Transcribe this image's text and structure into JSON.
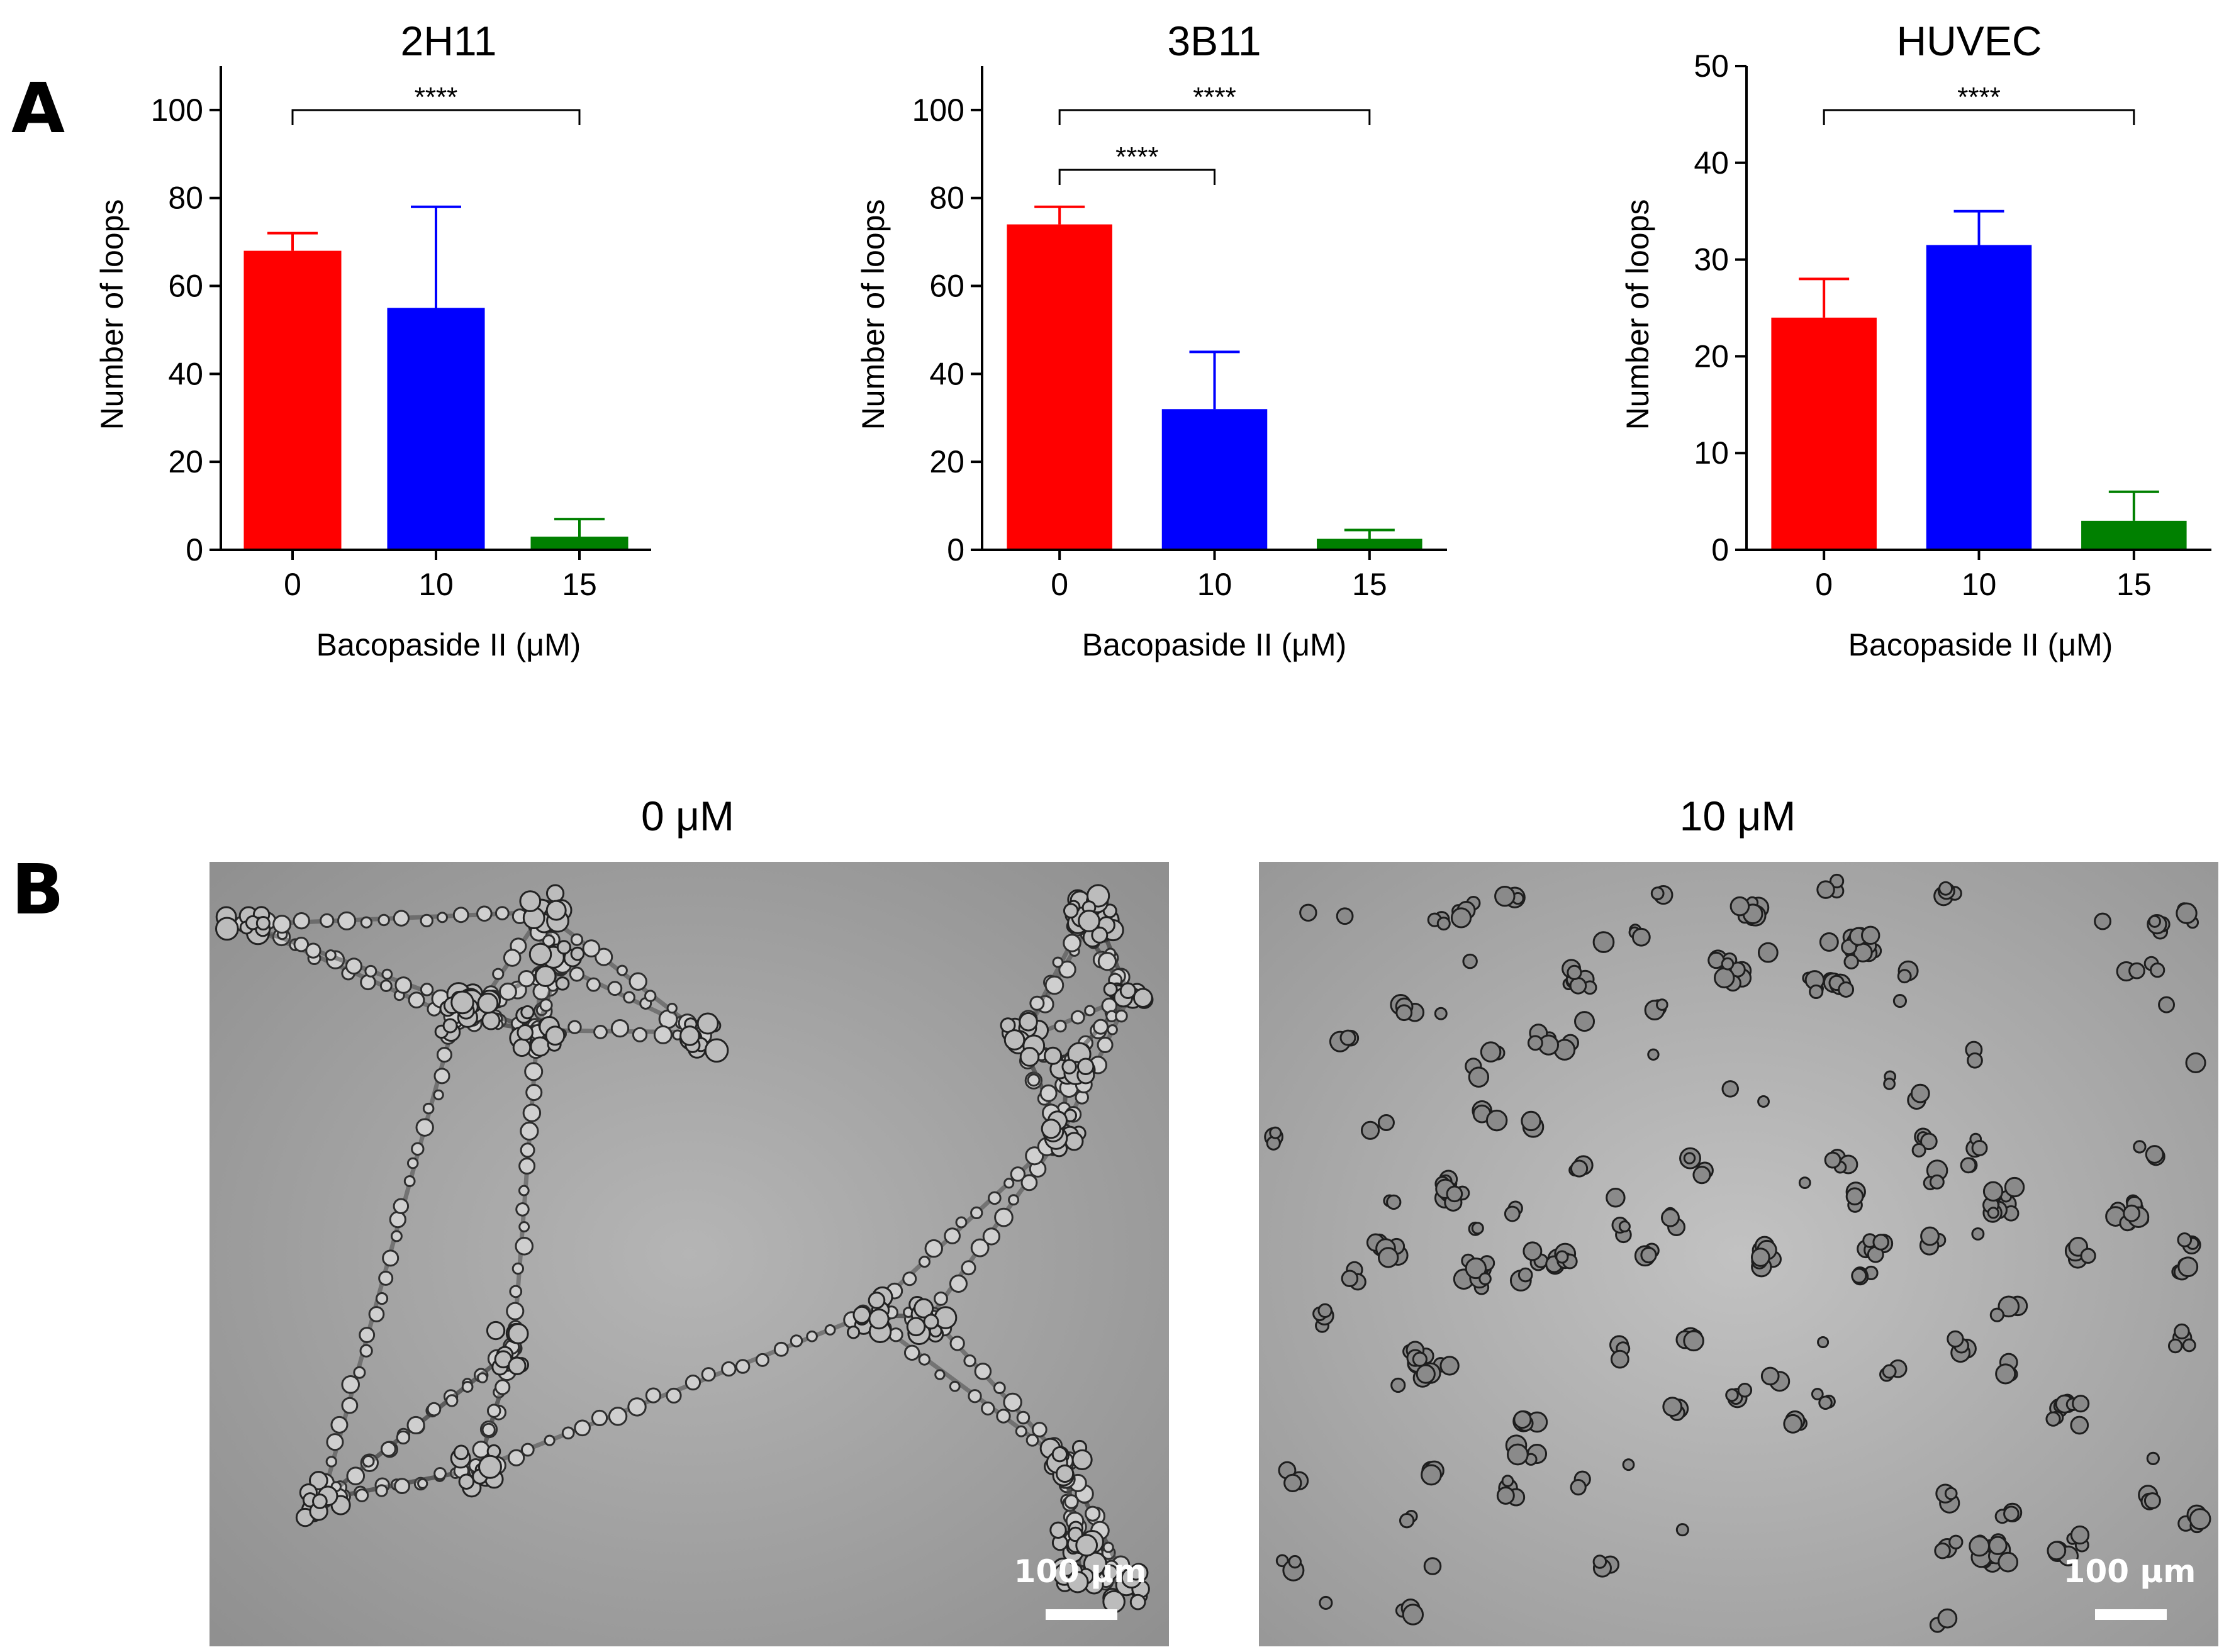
{
  "panel_letters": {
    "a": "A",
    "b": "B"
  },
  "colors": {
    "bar0": "#ff0000",
    "bar1": "#0000ff",
    "bar2": "#008000",
    "axis": "#000000"
  },
  "chart_data": [
    {
      "type": "bar",
      "title": "2H11",
      "xlabel": "Bacopaside II (μM)",
      "ylabel": "Number of loops",
      "categories": [
        "0",
        "10",
        "15"
      ],
      "values": [
        68,
        55,
        3
      ],
      "error_upper": [
        72,
        78,
        7
      ],
      "ylim": [
        0,
        110
      ],
      "yticks": [
        0,
        20,
        40,
        60,
        80,
        100
      ],
      "significance": [
        {
          "from": "0",
          "to": "15",
          "label": "****"
        }
      ]
    },
    {
      "type": "bar",
      "title": "3B11",
      "xlabel": "Bacopaside II (μM)",
      "ylabel": "Number of loops",
      "categories": [
        "0",
        "10",
        "15"
      ],
      "values": [
        74,
        32,
        2.5
      ],
      "error_upper": [
        78,
        45,
        4.5
      ],
      "ylim": [
        0,
        110
      ],
      "yticks": [
        0,
        20,
        40,
        60,
        80,
        100
      ],
      "significance": [
        {
          "from": "0",
          "to": "15",
          "label": "****"
        },
        {
          "from": "0",
          "to": "10",
          "label": "****"
        }
      ]
    },
    {
      "type": "bar",
      "title": "HUVEC",
      "xlabel": "Bacopaside II (μM)",
      "ylabel": "Number of loops",
      "categories": [
        "0",
        "10",
        "15"
      ],
      "values": [
        24,
        31.5,
        3
      ],
      "error_upper": [
        28,
        35,
        6
      ],
      "ylim": [
        0,
        50
      ],
      "yticks": [
        0,
        10,
        20,
        30,
        40,
        50
      ],
      "significance": [
        {
          "from": "0",
          "to": "15",
          "label": "****"
        }
      ]
    }
  ],
  "micrographs": [
    {
      "title": "0 μM",
      "scale_bar": "100 μm"
    },
    {
      "title": "10 μM",
      "scale_bar": "100 μm"
    }
  ]
}
